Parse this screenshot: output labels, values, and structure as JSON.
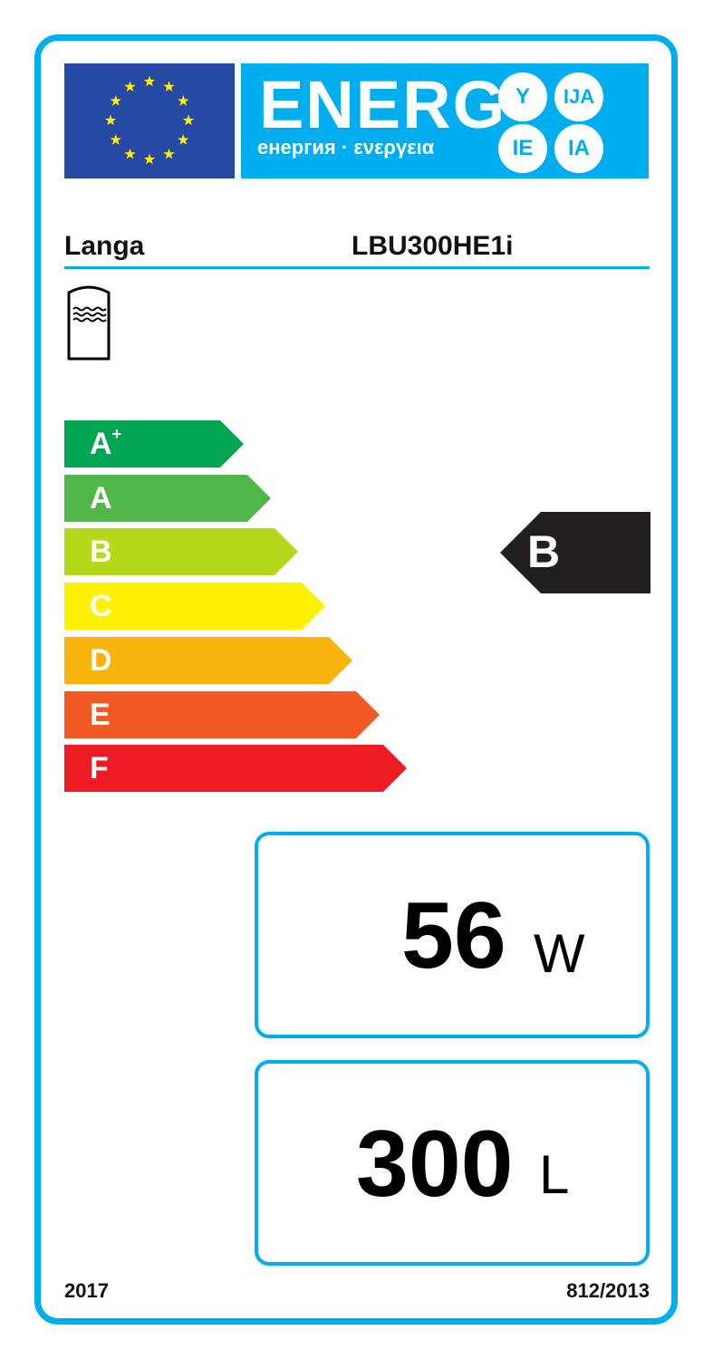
{
  "header": {
    "title": "ENERG",
    "subtitle": "енергия · ενεργεια",
    "suffixes": [
      "Y",
      "IJA",
      "IE",
      "IA"
    ],
    "flag_color": "#2649A4",
    "accent": "#00AEEF"
  },
  "product": {
    "supplier": "Langa",
    "model": "LBU300HE1i",
    "icon": "water-tank-icon"
  },
  "scale": [
    {
      "label": "A",
      "sup": "+",
      "color": "#00A651"
    },
    {
      "label": "A",
      "sup": "",
      "color": "#50B848"
    },
    {
      "label": "B",
      "sup": "",
      "color": "#B5D81A"
    },
    {
      "label": "C",
      "sup": "",
      "color": "#FFF200"
    },
    {
      "label": "D",
      "sup": "",
      "color": "#F9B30D"
    },
    {
      "label": "E",
      "sup": "",
      "color": "#F15A22"
    },
    {
      "label": "F",
      "sup": "",
      "color": "#ED1C24"
    }
  ],
  "rating": {
    "class": "B",
    "color": "#231F20"
  },
  "standing_loss": {
    "value": "56",
    "unit": "W"
  },
  "volume": {
    "value": "300",
    "unit": "L"
  },
  "footer": {
    "year": "2017",
    "regulation": "812/2013"
  }
}
